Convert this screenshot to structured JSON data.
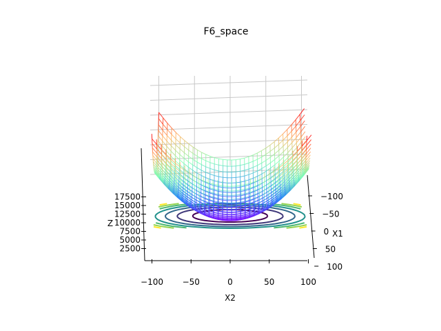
{
  "chart_data": {
    "type": "surface3d",
    "title": "F6_space",
    "function": "sphere: z = x1^2 + x2^2",
    "xlabel": "X2",
    "ylabel": "X1",
    "zlabel": "Z",
    "xlim": [
      -100,
      100
    ],
    "ylim": [
      -100,
      100
    ],
    "zlim": [
      0,
      20000
    ],
    "x_ticks": [
      "−100",
      "−50",
      "0",
      "50",
      "100"
    ],
    "y_ticks": [
      "−100",
      "−50",
      "0",
      "50",
      "100"
    ],
    "z_ticks": [
      "2500",
      "5000",
      "7500",
      "10000",
      "12500",
      "15000",
      "17500"
    ],
    "contour_levels": [
      2500,
      5000,
      7500,
      10000,
      12500,
      15000,
      17500
    ],
    "surface_colormap": "rainbow",
    "contour_colormap": "viridis",
    "grid": true
  }
}
